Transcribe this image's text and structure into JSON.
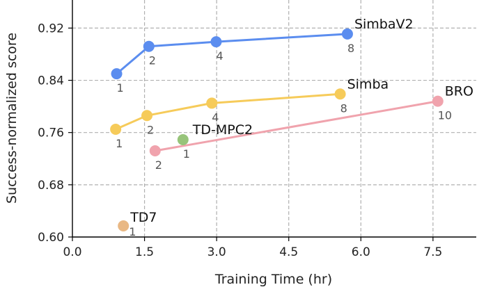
{
  "chart_data": {
    "type": "scatter",
    "xlabel": "Training Time (hr)",
    "ylabel": "Success-normalized score",
    "xlim": [
      0,
      8.4
    ],
    "ylim": [
      0.6,
      0.963
    ],
    "xticks": [
      "0.0",
      "1.5",
      "3.0",
      "4.5",
      "6.0",
      "7.5"
    ],
    "xtick_values": [
      0,
      1.5,
      3.0,
      4.5,
      6.0,
      7.5
    ],
    "yticks": [
      "0.60",
      "0.68",
      "0.76",
      "0.84",
      "0.92"
    ],
    "ytick_values": [
      0.6,
      0.68,
      0.76,
      0.84,
      0.92
    ],
    "grid": true,
    "series": [
      {
        "name": "SimbaV2",
        "color": "#5b8def",
        "x": [
          0.92,
          1.59,
          2.99,
          5.72
        ],
        "y": [
          0.85,
          0.892,
          0.899,
          0.911
        ],
        "labels": [
          "1",
          "2",
          "4",
          "8"
        ]
      },
      {
        "name": "Simba",
        "color": "#f6cb5a",
        "x": [
          0.9,
          1.55,
          2.9,
          5.57
        ],
        "y": [
          0.765,
          0.786,
          0.805,
          0.819
        ],
        "labels": [
          "1",
          "2",
          "4",
          "8"
        ]
      },
      {
        "name": "BRO",
        "color": "#f0a3ad",
        "x": [
          1.72,
          7.6
        ],
        "y": [
          0.732,
          0.808
        ],
        "labels": [
          "2",
          "10"
        ]
      },
      {
        "name": "TD-MPC2",
        "color": "#97c47a",
        "x": [
          2.3
        ],
        "y": [
          0.749
        ],
        "labels": [
          "1"
        ]
      },
      {
        "name": "TD7",
        "color": "#e9b884",
        "x": [
          1.06
        ],
        "y": [
          0.617
        ],
        "labels": [
          "1"
        ]
      }
    ]
  }
}
